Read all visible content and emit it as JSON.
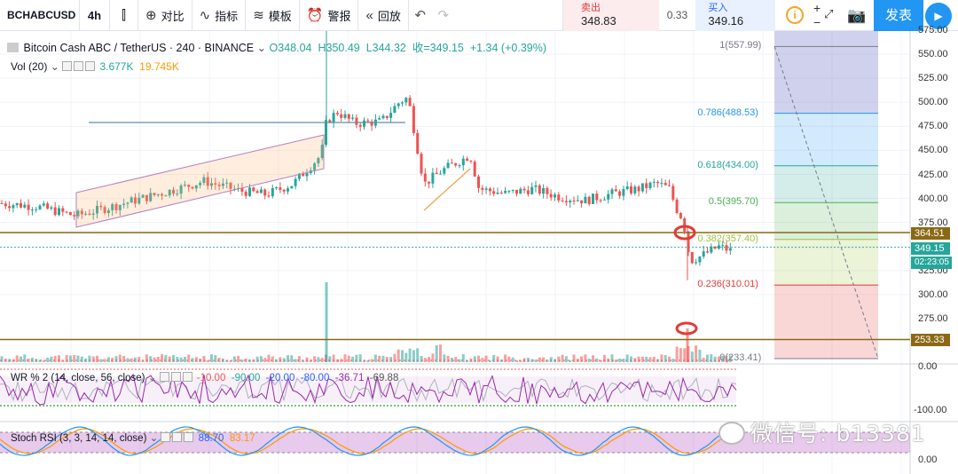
{
  "toolbar": {
    "symbol": "BCHABCUSD",
    "interval": "4h",
    "compare_label": "对比",
    "indicators_label": "指标",
    "templates_label": "模板",
    "alert_label": "警报",
    "replay_label": "回放"
  },
  "trade": {
    "sell_label": "卖出",
    "sell_price": "348.83",
    "spread": "0.33",
    "buy_label": "买入",
    "buy_price": "349.16"
  },
  "publish_label": "发表",
  "header": {
    "title": "Bitcoin Cash ABC / TetherUS · 240 · BINANCE",
    "open": "O348.04",
    "high": "H350.49",
    "low": "L344.32",
    "close": "收=349.15",
    "change": "+1.34 (+0.39%)"
  },
  "volume_legend": {
    "name": "Vol (20)",
    "value1": "3.677K",
    "value2": "19.745K"
  },
  "wr_legend": {
    "name": "WR % 2 (14, close, 56, close)",
    "v1": "-10.00",
    "v2": "-90.00",
    "v3": "-20.00",
    "v4": "-80.00",
    "v5": "-36.71",
    "v6": "-69.88"
  },
  "stoch_legend": {
    "name": "Stoch RSI (3, 3, 14, 14, close)",
    "k": "88.70",
    "d": "83.17"
  },
  "watermark": "微信号: b13381",
  "price_axis": [
    "575.00",
    "550.00",
    "525.00",
    "500.00",
    "475.00",
    "450.00",
    "425.00",
    "400.00",
    "375.00",
    "325.00",
    "300.00",
    "275.00"
  ],
  "price_tags": {
    "upper_line": "364.51",
    "last_price": "349.15",
    "countdown": "02:23:05",
    "lower_line": "253.33"
  },
  "wr_axis": {
    "top": "0.00",
    "bottom": "-100.00"
  },
  "stoch_axis": {
    "bottom": "0.00"
  },
  "fib_levels": [
    {
      "label": "1(557.99)",
      "price": 557.99,
      "color": "#787b86"
    },
    {
      "label": "0.786(488.53)",
      "price": 488.53,
      "color": "#2196f3"
    },
    {
      "label": "0.618(434.00)",
      "price": 434.0,
      "color": "#26a69a"
    },
    {
      "label": "0.5(395.70)",
      "price": 395.7,
      "color": "#4caf50"
    },
    {
      "label": "0.382(357.40)",
      "price": 357.4,
      "color": "#9bc53d"
    },
    {
      "label": "0.236(310.01)",
      "price": 310.01,
      "color": "#e53935"
    },
    {
      "label": "0(233.41)",
      "price": 233.41,
      "color": "#787b86"
    }
  ],
  "colors": {
    "up": "#26a69a",
    "down": "#ef5350",
    "hline": "#8b6914",
    "publish": "#2196f3"
  }
}
